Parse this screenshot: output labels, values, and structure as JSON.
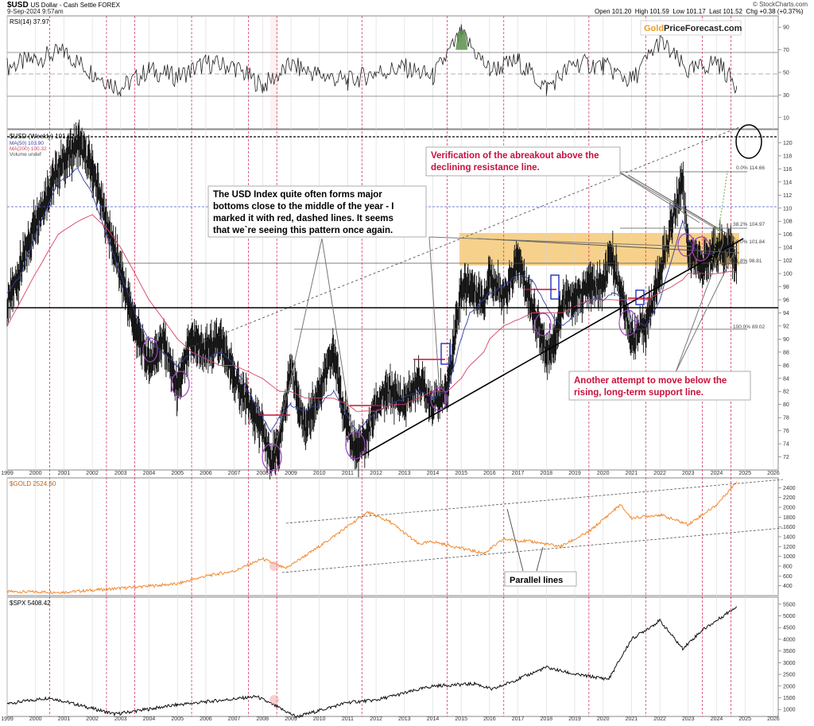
{
  "header": {
    "symbol": "$USD",
    "description": "US Dollar - Cash Settle FOREX",
    "date": "9-Sep-2024 9:57am",
    "open": "Open 101.20",
    "high": "High 101.59",
    "low": "Low 101.17",
    "last": "Last 101.52",
    "change": "Chg +0.38 (+0.37%)",
    "credit": "© StockCharts.com"
  },
  "logo": {
    "part1": "Gold",
    "part2": "PriceForecast.com"
  },
  "colors": {
    "candle": "#111111",
    "ma50": "#3340a0",
    "ma200": "#d84060",
    "gold": "#f08a30",
    "annotation_red": "#c8103c",
    "zone": "#f2bd5a",
    "dashed_red": "#d0204a",
    "rsi_over": "#5a8f4a"
  },
  "x_axis": {
    "years": [
      "1999",
      "2000",
      "2001",
      "2002",
      "2003",
      "2004",
      "2005",
      "2006",
      "2007",
      "2008",
      "2009",
      "2010",
      "2011",
      "2012",
      "2013",
      "2014",
      "2015",
      "2016",
      "2017",
      "2018",
      "2019",
      "2020",
      "2021",
      "2022",
      "2023",
      "2024",
      "2025",
      "2026"
    ]
  },
  "panels": {
    "rsi": {
      "label": "RSI(14) 37.97",
      "ticks": [
        "90",
        "70",
        "50",
        "30",
        "10"
      ]
    },
    "usd": {
      "label": "$USD (Weekly) 101.52",
      "legend_ma50": "MA(50) 103.90",
      "legend_ma200": "MA(200) 100.32",
      "legend_volume": "Volume undef",
      "ticks": [
        "120",
        "118",
        "116",
        "114",
        "112",
        "110",
        "108",
        "106",
        "104",
        "102",
        "100",
        "98",
        "96",
        "94",
        "92",
        "90",
        "88",
        "86",
        "84",
        "82",
        "80",
        "78",
        "76",
        "74",
        "72"
      ],
      "fib_levels": [
        "0.0% 114.66",
        "38.2% 104.97",
        "50.0% 101.84",
        "61.8% 98.81",
        "100.0% 89.02"
      ]
    },
    "gold": {
      "label": "$GOLD 2524.60",
      "ticks": [
        "2400",
        "2200",
        "2000",
        "1800",
        "1600",
        "1400",
        "1200",
        "1000",
        "800",
        "600",
        "400"
      ]
    },
    "spx": {
      "label": "$SPX 5408.42",
      "ticks": [
        "5500",
        "5000",
        "4500",
        "4000",
        "3500",
        "3000",
        "2500",
        "2000",
        "1500",
        "1000"
      ]
    }
  },
  "annotations": {
    "verification": "Verification of the abreakout above the declining resistance line.",
    "bottoms": "The USD Index quite often forms major bottoms close to the middle of the year - I marked it with red, dashed lines. It seems that we`re seeing this pattern once again.",
    "support": "Another attempt to move below the rising, long-term support line.",
    "parallel": "Parallel lines"
  },
  "chart_data": [
    {
      "type": "line",
      "title": "RSI(14) 37.97",
      "x": [
        1999,
        2000,
        2001,
        2002,
        2003,
        2004,
        2005,
        2006,
        2007,
        2008,
        2009,
        2010,
        2011,
        2012,
        2013,
        2014,
        2015,
        2016,
        2017,
        2018,
        2019,
        2020,
        2021,
        2022,
        2023,
        2024,
        2024.7
      ],
      "series": [
        {
          "values": [
            55,
            62,
            68,
            50,
            36,
            52,
            46,
            58,
            55,
            38,
            56,
            48,
            42,
            50,
            54,
            46,
            84,
            52,
            60,
            36,
            58,
            56,
            42,
            78,
            50,
            60,
            37.97
          ]
        }
      ],
      "ylim": [
        0,
        100
      ]
    },
    {
      "type": "line",
      "title": "$USD (Weekly) 101.52",
      "x": [
        1999,
        1999.5,
        2000,
        2000.8,
        2001.5,
        2002,
        2002.5,
        2003,
        2003.5,
        2004,
        2004.5,
        2005,
        2005.5,
        2006,
        2006.5,
        2007,
        2007.5,
        2008,
        2008.3,
        2008.6,
        2009,
        2009.5,
        2010,
        2010.5,
        2011,
        2011.3,
        2011.6,
        2012,
        2012.5,
        2013,
        2013.5,
        2014,
        2014.5,
        2015,
        2015.3,
        2015.8,
        2016,
        2016.5,
        2017,
        2017.5,
        2018,
        2018.3,
        2018.6,
        2019,
        2019.5,
        2020,
        2020.3,
        2020.8,
        2021,
        2021.5,
        2022,
        2022.8,
        2023,
        2023.5,
        2024,
        2024.5,
        2024.7
      ],
      "series": [
        {
          "name": "$USD",
          "values": [
            95,
            101,
            108,
            116,
            120,
            116,
            108,
            100,
            92,
            86,
            90,
            82,
            90,
            88,
            90,
            84,
            80,
            76,
            71,
            74,
            86,
            76,
            82,
            88,
            76,
            73,
            74,
            80,
            82,
            80,
            84,
            80,
            82,
            98,
            98,
            96,
            100,
            96,
            102,
            95,
            88,
            90,
            96,
            96,
            98,
            98,
            103,
            94,
            90,
            92,
            100,
            114.66,
            104,
            101,
            104,
            104,
            101.52
          ]
        },
        {
          "name": "MA(50) 103.90",
          "values": [
            97,
            100,
            106,
            114,
            116,
            112,
            106,
            100,
            94,
            90,
            88,
            86,
            88,
            87,
            88,
            86,
            82,
            78,
            76,
            78,
            80,
            79,
            80,
            82,
            78,
            76,
            77,
            79,
            80,
            81,
            82,
            81,
            82,
            90,
            94,
            96,
            97,
            98,
            100,
            99,
            95,
            93,
            92,
            94,
            96,
            96,
            97,
            96,
            93,
            92,
            96,
            108,
            105,
            103,
            103,
            104,
            103.9
          ]
        },
        {
          "name": "MA(200) 100.32",
          "values": [
            92,
            96,
            100,
            106,
            108,
            109,
            107,
            104,
            100,
            96,
            93,
            90,
            88,
            87,
            86,
            86,
            85,
            84,
            83,
            82,
            82,
            81,
            81,
            81,
            80,
            79,
            79,
            79,
            80,
            80,
            81,
            82,
            82,
            84,
            86,
            88,
            90,
            92,
            93,
            94,
            94,
            94,
            94,
            95,
            96,
            96,
            96,
            96,
            96,
            96,
            97,
            99,
            100,
            100,
            100,
            100.3,
            100.32
          ]
        }
      ],
      "ylim": [
        70,
        122
      ]
    },
    {
      "type": "line",
      "title": "$GOLD 2524.60",
      "x": [
        1999,
        2001,
        2003,
        2005,
        2006,
        2007,
        2008,
        2008.8,
        2010,
        2011.7,
        2012.5,
        2013.5,
        2014,
        2015.8,
        2016.5,
        2017.5,
        2018.5,
        2019.5,
        2020.6,
        2021,
        2022,
        2023,
        2024,
        2024.7
      ],
      "series": [
        {
          "name": "$GOLD",
          "values": [
            280,
            270,
            350,
            440,
            600,
            700,
            950,
            750,
            1200,
            1900,
            1700,
            1250,
            1300,
            1060,
            1350,
            1300,
            1200,
            1500,
            2050,
            1780,
            1850,
            1650,
            2050,
            2524.6
          ]
        }
      ],
      "ylim": [
        200,
        2600
      ]
    },
    {
      "type": "line",
      "title": "$SPX 5408.42",
      "x": [
        1999,
        2000.5,
        2002.8,
        2005,
        2007.8,
        2009.2,
        2011,
        2012,
        2014,
        2015.5,
        2016.1,
        2018,
        2019,
        2020.2,
        2021,
        2022,
        2022.8,
        2023.5,
        2024,
        2024.7
      ],
      "series": [
        {
          "name": "$SPX",
          "values": [
            1250,
            1500,
            800,
            1200,
            1550,
            680,
            1300,
            1400,
            2000,
            2100,
            1850,
            2800,
            2500,
            2300,
            4000,
            4800,
            3600,
            4400,
            4800,
            5408.42
          ]
        }
      ],
      "ylim": [
        700,
        5800
      ]
    }
  ]
}
